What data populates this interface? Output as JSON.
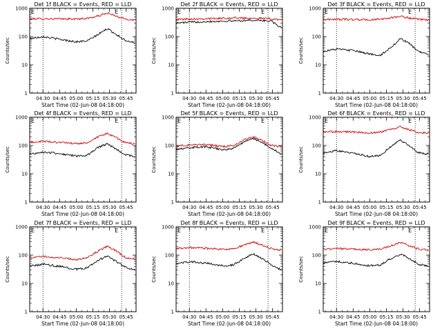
{
  "page": {
    "background": "#ffffff"
  },
  "chart_data": [
    {
      "type": "line",
      "title": "Det 1f BLACK = Events, RED = LLD",
      "xlabel": "Start Time (02-Jun-08 04:18:00)",
      "ylabel": "Counts/sec",
      "y_scale": "log",
      "ylim": [
        1,
        1000
      ],
      "yticks": [
        "1",
        "10",
        "100",
        "1000"
      ],
      "xlim": [
        "04:18",
        "05:54"
      ],
      "xticks": [
        "04:30",
        "04:45",
        "05:00",
        "05:15",
        "05:30",
        "05:45"
      ],
      "markers": [
        "04:30",
        "05:41"
      ],
      "series": [
        {
          "color": "#d00000",
          "x": [
            "04:18",
            "04:30",
            "04:45",
            "05:00",
            "05:10",
            "05:20",
            "05:28",
            "05:36",
            "05:44",
            "05:53"
          ],
          "values": [
            420,
            430,
            420,
            420,
            440,
            530,
            680,
            520,
            420,
            380
          ]
        },
        {
          "color": "#000000",
          "x": [
            "04:18",
            "04:30",
            "04:45",
            "05:00",
            "05:10",
            "05:20",
            "05:28",
            "05:36",
            "05:44",
            "05:53"
          ],
          "values": [
            85,
            100,
            80,
            65,
            70,
            120,
            190,
            120,
            75,
            60
          ]
        }
      ]
    },
    {
      "type": "line",
      "title": "Det 2f BLACK = Events, RED = LLD",
      "xlabel": "Start Time (02-Jun-08 04:18:00)",
      "ylabel": "Counts/sec",
      "y_scale": "log",
      "ylim": [
        1,
        1000
      ],
      "yticks": [
        "1",
        "10",
        "100",
        "1000"
      ],
      "xlim": [
        "04:18",
        "05:54"
      ],
      "xticks": [
        "04:30",
        "04:45",
        "05:00",
        "05:15",
        "05:30",
        "05:45"
      ],
      "markers": [
        "04:30",
        "05:41"
      ],
      "series": [
        {
          "color": "#d00000",
          "x": [
            "04:18",
            "04:30",
            "04:45",
            "05:00",
            "05:10",
            "05:20",
            "05:28",
            "05:36",
            "05:44",
            "05:53"
          ],
          "values": [
            400,
            420,
            430,
            440,
            460,
            450,
            460,
            440,
            420,
            400
          ]
        },
        {
          "color": "#000000",
          "x": [
            "04:18",
            "04:30",
            "04:45",
            "05:00",
            "05:10",
            "05:20",
            "05:28",
            "05:36",
            "05:44",
            "05:53"
          ],
          "values": [
            300,
            320,
            340,
            350,
            360,
            370,
            380,
            370,
            350,
            200
          ]
        }
      ]
    },
    {
      "type": "line",
      "title": "Det 3f BLACK = Events, RED = LLD",
      "xlabel": "Start Time (02-Jun-08 04:18:00)",
      "ylabel": "Counts/sec",
      "y_scale": "log",
      "ylim": [
        1,
        1000
      ],
      "yticks": [
        "1",
        "10",
        "100",
        "1000"
      ],
      "xlim": [
        "04:18",
        "05:54"
      ],
      "xticks": [
        "04:30",
        "04:45",
        "05:00",
        "05:15",
        "05:30",
        "05:45"
      ],
      "markers": [
        "04:30",
        "05:41"
      ],
      "series": [
        {
          "color": "#d00000",
          "x": [
            "04:18",
            "04:30",
            "04:45",
            "05:00",
            "05:10",
            "05:20",
            "05:28",
            "05:36",
            "05:44",
            "05:53"
          ],
          "values": [
            400,
            410,
            400,
            390,
            410,
            470,
            520,
            450,
            400,
            380
          ]
        },
        {
          "color": "#000000",
          "x": [
            "04:18",
            "04:30",
            "04:45",
            "05:00",
            "05:10",
            "05:20",
            "05:28",
            "05:36",
            "05:44",
            "05:53"
          ],
          "values": [
            30,
            36,
            32,
            24,
            22,
            45,
            85,
            55,
            30,
            22
          ]
        }
      ]
    },
    {
      "type": "line",
      "title": "Det 4f BLACK = Events, RED = LLD",
      "xlabel": "Start Time (02-Jun-08 04:18:00)",
      "ylabel": "Counts/sec",
      "y_scale": "log",
      "ylim": [
        1,
        1000
      ],
      "yticks": [
        "1",
        "10",
        "100",
        "1000"
      ],
      "xlim": [
        "04:18",
        "05:54"
      ],
      "xticks": [
        "04:30",
        "04:45",
        "05:00",
        "05:15",
        "05:30",
        "05:45"
      ],
      "markers": [
        "04:30",
        "05:41"
      ],
      "series": [
        {
          "color": "#d00000",
          "x": [
            "04:18",
            "04:30",
            "04:45",
            "05:00",
            "05:10",
            "05:20",
            "05:28",
            "05:36",
            "05:44",
            "05:53"
          ],
          "values": [
            130,
            140,
            130,
            115,
            125,
            200,
            270,
            190,
            130,
            110
          ]
        },
        {
          "color": "#000000",
          "x": [
            "04:18",
            "04:30",
            "04:45",
            "05:00",
            "05:10",
            "05:20",
            "05:28",
            "05:36",
            "05:44",
            "05:53"
          ],
          "values": [
            50,
            58,
            52,
            42,
            45,
            85,
            115,
            75,
            48,
            40
          ]
        }
      ]
    },
    {
      "type": "line",
      "title": "Det 5f BLACK = Events, RED = LLD",
      "xlabel": "Start Time (02-Jun-08 04:18:00)",
      "ylabel": "Counts/sec",
      "y_scale": "log",
      "ylim": [
        1,
        1000
      ],
      "yticks": [
        "1",
        "10",
        "100",
        "1000"
      ],
      "xlim": [
        "04:18",
        "05:54"
      ],
      "xticks": [
        "04:30",
        "04:45",
        "05:00",
        "05:15",
        "05:30",
        "05:45"
      ],
      "markers": [
        "04:30",
        "05:41"
      ],
      "series": [
        {
          "color": "#d00000",
          "x": [
            "04:18",
            "04:30",
            "04:45",
            "05:00",
            "05:10",
            "05:20",
            "05:28",
            "05:36",
            "05:44",
            "05:53"
          ],
          "values": [
            95,
            105,
            110,
            90,
            100,
            160,
            200,
            150,
            100,
            90
          ]
        },
        {
          "color": "#000000",
          "x": [
            "04:18",
            "04:30",
            "04:45",
            "05:00",
            "05:10",
            "05:20",
            "05:28",
            "05:36",
            "05:44",
            "05:53"
          ],
          "values": [
            75,
            85,
            90,
            70,
            80,
            140,
            175,
            125,
            80,
            50
          ]
        }
      ]
    },
    {
      "type": "line",
      "title": "Det 6f BLACK = Events, RED = LLD",
      "xlabel": "Start Time (02-Jun-08 04:18:00)",
      "ylabel": "Counts/sec",
      "y_scale": "log",
      "ylim": [
        1,
        1000
      ],
      "yticks": [
        "1",
        "10",
        "100",
        "1000"
      ],
      "xlim": [
        "04:18",
        "05:54"
      ],
      "xticks": [
        "04:30",
        "04:45",
        "05:00",
        "05:15",
        "05:30",
        "05:45"
      ],
      "markers": [
        "04:30",
        "05:41"
      ],
      "series": [
        {
          "color": "#d00000",
          "x": [
            "04:18",
            "04:30",
            "04:45",
            "05:00",
            "05:10",
            "05:20",
            "05:28",
            "05:36",
            "05:44",
            "05:53"
          ],
          "values": [
            300,
            310,
            300,
            280,
            300,
            380,
            460,
            350,
            290,
            270
          ]
        },
        {
          "color": "#000000",
          "x": [
            "04:18",
            "04:30",
            "04:45",
            "05:00",
            "05:10",
            "05:20",
            "05:28",
            "05:36",
            "05:44",
            "05:53"
          ],
          "values": [
            55,
            65,
            55,
            40,
            45,
            100,
            155,
            95,
            55,
            50
          ]
        }
      ]
    },
    {
      "type": "line",
      "title": "Det 7f BLACK = Events, RED = LLD",
      "xlabel": "Start Time (02-Jun-08 04:18:00)",
      "ylabel": "Counts/sec",
      "y_scale": "log",
      "ylim": [
        1,
        1000
      ],
      "yticks": [
        "1",
        "10",
        "100",
        "1000"
      ],
      "xlim": [
        "04:18",
        "05:54"
      ],
      "xticks": [
        "04:30",
        "04:45",
        "05:00",
        "05:15",
        "05:30",
        "05:45"
      ],
      "markers": [
        "04:30",
        "05:41"
      ],
      "series": [
        {
          "color": "#d00000",
          "x": [
            "04:18",
            "04:30",
            "04:45",
            "05:00",
            "05:10",
            "05:20",
            "05:28",
            "05:36",
            "05:44",
            "05:53"
          ],
          "values": [
            80,
            90,
            80,
            70,
            80,
            140,
            210,
            140,
            85,
            70
          ]
        },
        {
          "color": "#000000",
          "x": [
            "04:18",
            "04:30",
            "04:45",
            "05:00",
            "05:10",
            "05:20",
            "05:28",
            "05:36",
            "05:44",
            "05:53"
          ],
          "values": [
            40,
            48,
            40,
            32,
            36,
            65,
            95,
            60,
            38,
            30
          ]
        }
      ]
    },
    {
      "type": "line",
      "title": "Det 8f BLACK = Events, RED = LLD",
      "xlabel": "Start Time (02-Jun-08 04:18:00)",
      "ylabel": "Counts/sec",
      "y_scale": "log",
      "ylim": [
        1,
        1000
      ],
      "yticks": [
        "1",
        "10",
        "100",
        "1000"
      ],
      "xlim": [
        "04:18",
        "05:54"
      ],
      "xticks": [
        "04:30",
        "04:45",
        "05:00",
        "05:15",
        "05:30",
        "05:45"
      ],
      "markers": [
        "04:30",
        "05:41"
      ],
      "series": [
        {
          "color": "#d00000",
          "x": [
            "04:18",
            "04:30",
            "04:45",
            "05:00",
            "05:10",
            "05:20",
            "05:28",
            "05:36",
            "05:44",
            "05:53"
          ],
          "values": [
            170,
            185,
            175,
            160,
            170,
            230,
            290,
            220,
            170,
            150
          ]
        },
        {
          "color": "#000000",
          "x": [
            "04:18",
            "04:30",
            "04:45",
            "05:00",
            "05:10",
            "05:20",
            "05:28",
            "05:36",
            "05:44",
            "05:53"
          ],
          "values": [
            50,
            58,
            52,
            42,
            45,
            80,
            110,
            75,
            45,
            30
          ]
        }
      ]
    },
    {
      "type": "line",
      "title": "Det 9f BLACK = Events, RED = LLD",
      "xlabel": "Start Time (02-Jun-08 04:18:00)",
      "ylabel": "Counts/sec",
      "y_scale": "log",
      "ylim": [
        1,
        1000
      ],
      "yticks": [
        "1",
        "10",
        "100",
        "1000"
      ],
      "xlim": [
        "04:18",
        "05:54"
      ],
      "xticks": [
        "04:30",
        "04:45",
        "05:00",
        "05:15",
        "05:30",
        "05:45"
      ],
      "markers": [
        "04:30",
        "05:41"
      ],
      "series": [
        {
          "color": "#d00000",
          "x": [
            "04:18",
            "04:30",
            "04:45",
            "05:00",
            "05:10",
            "05:20",
            "05:28",
            "05:36",
            "05:44",
            "05:53"
          ],
          "values": [
            160,
            170,
            165,
            155,
            165,
            220,
            280,
            210,
            165,
            150
          ]
        },
        {
          "color": "#000000",
          "x": [
            "04:18",
            "04:30",
            "04:45",
            "05:00",
            "05:10",
            "05:20",
            "05:28",
            "05:36",
            "05:44",
            "05:53"
          ],
          "values": [
            52,
            60,
            52,
            42,
            46,
            80,
            110,
            75,
            48,
            40
          ]
        }
      ]
    }
  ]
}
